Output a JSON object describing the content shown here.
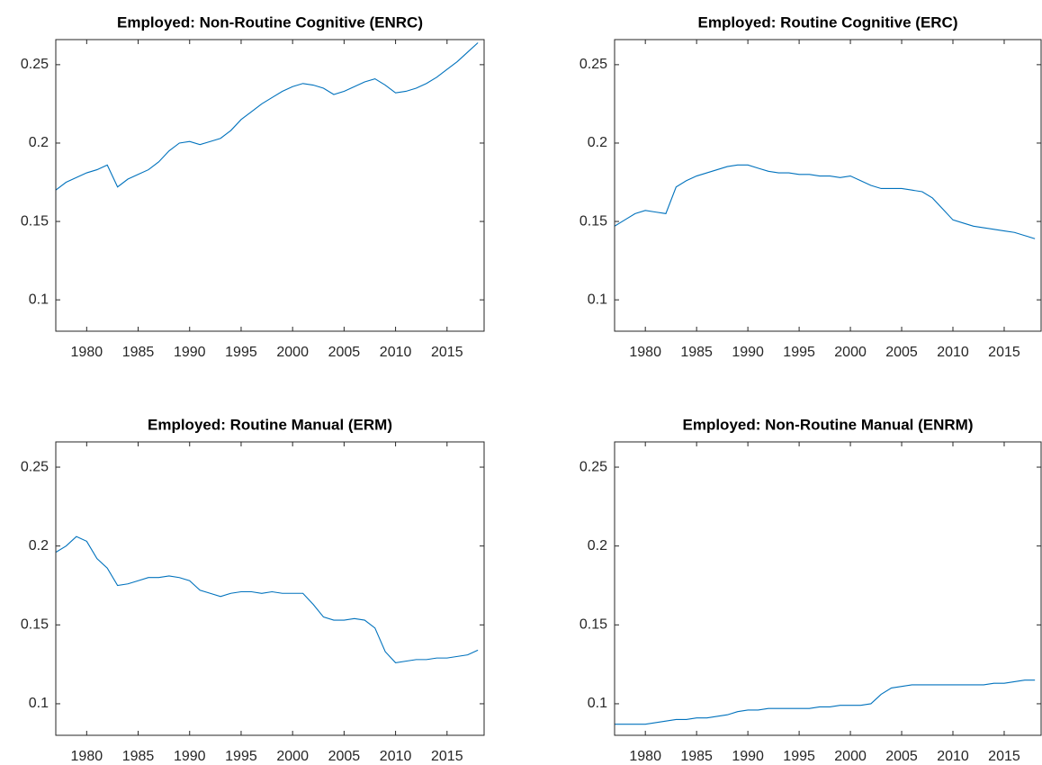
{
  "chart_data": [
    {
      "type": "line",
      "title": "Employed: Non-Routine Cognitive (ENRC)",
      "color": "#0072bd",
      "x": [
        1977,
        1978,
        1979,
        1980,
        1981,
        1982,
        1983,
        1984,
        1985,
        1986,
        1987,
        1988,
        1989,
        1990,
        1991,
        1992,
        1993,
        1994,
        1995,
        1996,
        1997,
        1998,
        1999,
        2000,
        2001,
        2002,
        2003,
        2004,
        2005,
        2006,
        2007,
        2008,
        2009,
        2010,
        2011,
        2012,
        2013,
        2014,
        2015,
        2016,
        2017,
        2018
      ],
      "values": [
        0.17,
        0.175,
        0.178,
        0.181,
        0.183,
        0.186,
        0.172,
        0.177,
        0.18,
        0.183,
        0.188,
        0.195,
        0.2,
        0.201,
        0.199,
        0.201,
        0.203,
        0.208,
        0.215,
        0.22,
        0.225,
        0.229,
        0.233,
        0.236,
        0.238,
        0.237,
        0.235,
        0.231,
        0.233,
        0.236,
        0.239,
        0.241,
        0.237,
        0.232,
        0.233,
        0.235,
        0.238,
        0.242,
        0.247,
        0.252,
        0.258,
        0.264
      ],
      "xlim": [
        1977,
        2018.6
      ],
      "ylim": [
        0.08,
        0.266
      ],
      "xticks": [
        1980,
        1985,
        1990,
        1995,
        2000,
        2005,
        2010,
        2015
      ],
      "yticks": [
        0.1,
        0.15,
        0.2,
        0.25
      ]
    },
    {
      "type": "line",
      "title": "Employed: Routine Cognitive (ERC)",
      "color": "#0072bd",
      "x": [
        1977,
        1978,
        1979,
        1980,
        1981,
        1982,
        1983,
        1984,
        1985,
        1986,
        1987,
        1988,
        1989,
        1990,
        1991,
        1992,
        1993,
        1994,
        1995,
        1996,
        1997,
        1998,
        1999,
        2000,
        2001,
        2002,
        2003,
        2004,
        2005,
        2006,
        2007,
        2008,
        2009,
        2010,
        2011,
        2012,
        2013,
        2014,
        2015,
        2016,
        2017,
        2018
      ],
      "values": [
        0.147,
        0.151,
        0.155,
        0.157,
        0.156,
        0.155,
        0.172,
        0.176,
        0.179,
        0.181,
        0.183,
        0.185,
        0.186,
        0.186,
        0.184,
        0.182,
        0.181,
        0.181,
        0.18,
        0.18,
        0.179,
        0.179,
        0.178,
        0.179,
        0.176,
        0.173,
        0.171,
        0.171,
        0.171,
        0.17,
        0.169,
        0.165,
        0.158,
        0.151,
        0.149,
        0.147,
        0.146,
        0.145,
        0.144,
        0.143,
        0.141,
        0.139
      ],
      "xlim": [
        1977,
        2018.6
      ],
      "ylim": [
        0.08,
        0.266
      ],
      "xticks": [
        1980,
        1985,
        1990,
        1995,
        2000,
        2005,
        2010,
        2015
      ],
      "yticks": [
        0.1,
        0.15,
        0.2,
        0.25
      ]
    },
    {
      "type": "line",
      "title": "Employed: Routine Manual (ERM)",
      "color": "#0072bd",
      "x": [
        1977,
        1978,
        1979,
        1980,
        1981,
        1982,
        1983,
        1984,
        1985,
        1986,
        1987,
        1988,
        1989,
        1990,
        1991,
        1992,
        1993,
        1994,
        1995,
        1996,
        1997,
        1998,
        1999,
        2000,
        2001,
        2002,
        2003,
        2004,
        2005,
        2006,
        2007,
        2008,
        2009,
        2010,
        2011,
        2012,
        2013,
        2014,
        2015,
        2016,
        2017,
        2018
      ],
      "values": [
        0.196,
        0.2,
        0.206,
        0.203,
        0.192,
        0.186,
        0.175,
        0.176,
        0.178,
        0.18,
        0.18,
        0.181,
        0.18,
        0.178,
        0.172,
        0.17,
        0.168,
        0.17,
        0.171,
        0.171,
        0.17,
        0.171,
        0.17,
        0.17,
        0.17,
        0.163,
        0.155,
        0.153,
        0.153,
        0.154,
        0.153,
        0.148,
        0.133,
        0.126,
        0.127,
        0.128,
        0.128,
        0.129,
        0.129,
        0.13,
        0.131,
        0.134
      ],
      "xlim": [
        1977,
        2018.6
      ],
      "ylim": [
        0.08,
        0.266
      ],
      "xticks": [
        1980,
        1985,
        1990,
        1995,
        2000,
        2005,
        2010,
        2015
      ],
      "yticks": [
        0.1,
        0.15,
        0.2,
        0.25
      ]
    },
    {
      "type": "line",
      "title": "Employed: Non-Routine Manual (ENRM)",
      "color": "#0072bd",
      "x": [
        1977,
        1978,
        1979,
        1980,
        1981,
        1982,
        1983,
        1984,
        1985,
        1986,
        1987,
        1988,
        1989,
        1990,
        1991,
        1992,
        1993,
        1994,
        1995,
        1996,
        1997,
        1998,
        1999,
        2000,
        2001,
        2002,
        2003,
        2004,
        2005,
        2006,
        2007,
        2008,
        2009,
        2010,
        2011,
        2012,
        2013,
        2014,
        2015,
        2016,
        2017,
        2018
      ],
      "values": [
        0.087,
        0.087,
        0.087,
        0.087,
        0.088,
        0.089,
        0.09,
        0.09,
        0.091,
        0.091,
        0.092,
        0.093,
        0.095,
        0.096,
        0.096,
        0.097,
        0.097,
        0.097,
        0.097,
        0.097,
        0.098,
        0.098,
        0.099,
        0.099,
        0.099,
        0.1,
        0.106,
        0.11,
        0.111,
        0.112,
        0.112,
        0.112,
        0.112,
        0.112,
        0.112,
        0.112,
        0.112,
        0.113,
        0.113,
        0.114,
        0.115,
        0.115
      ],
      "xlim": [
        1977,
        2018.6
      ],
      "ylim": [
        0.08,
        0.266
      ],
      "xticks": [
        1980,
        1985,
        1990,
        1995,
        2000,
        2005,
        2010,
        2015
      ],
      "yticks": [
        0.1,
        0.15,
        0.2,
        0.25
      ]
    }
  ]
}
